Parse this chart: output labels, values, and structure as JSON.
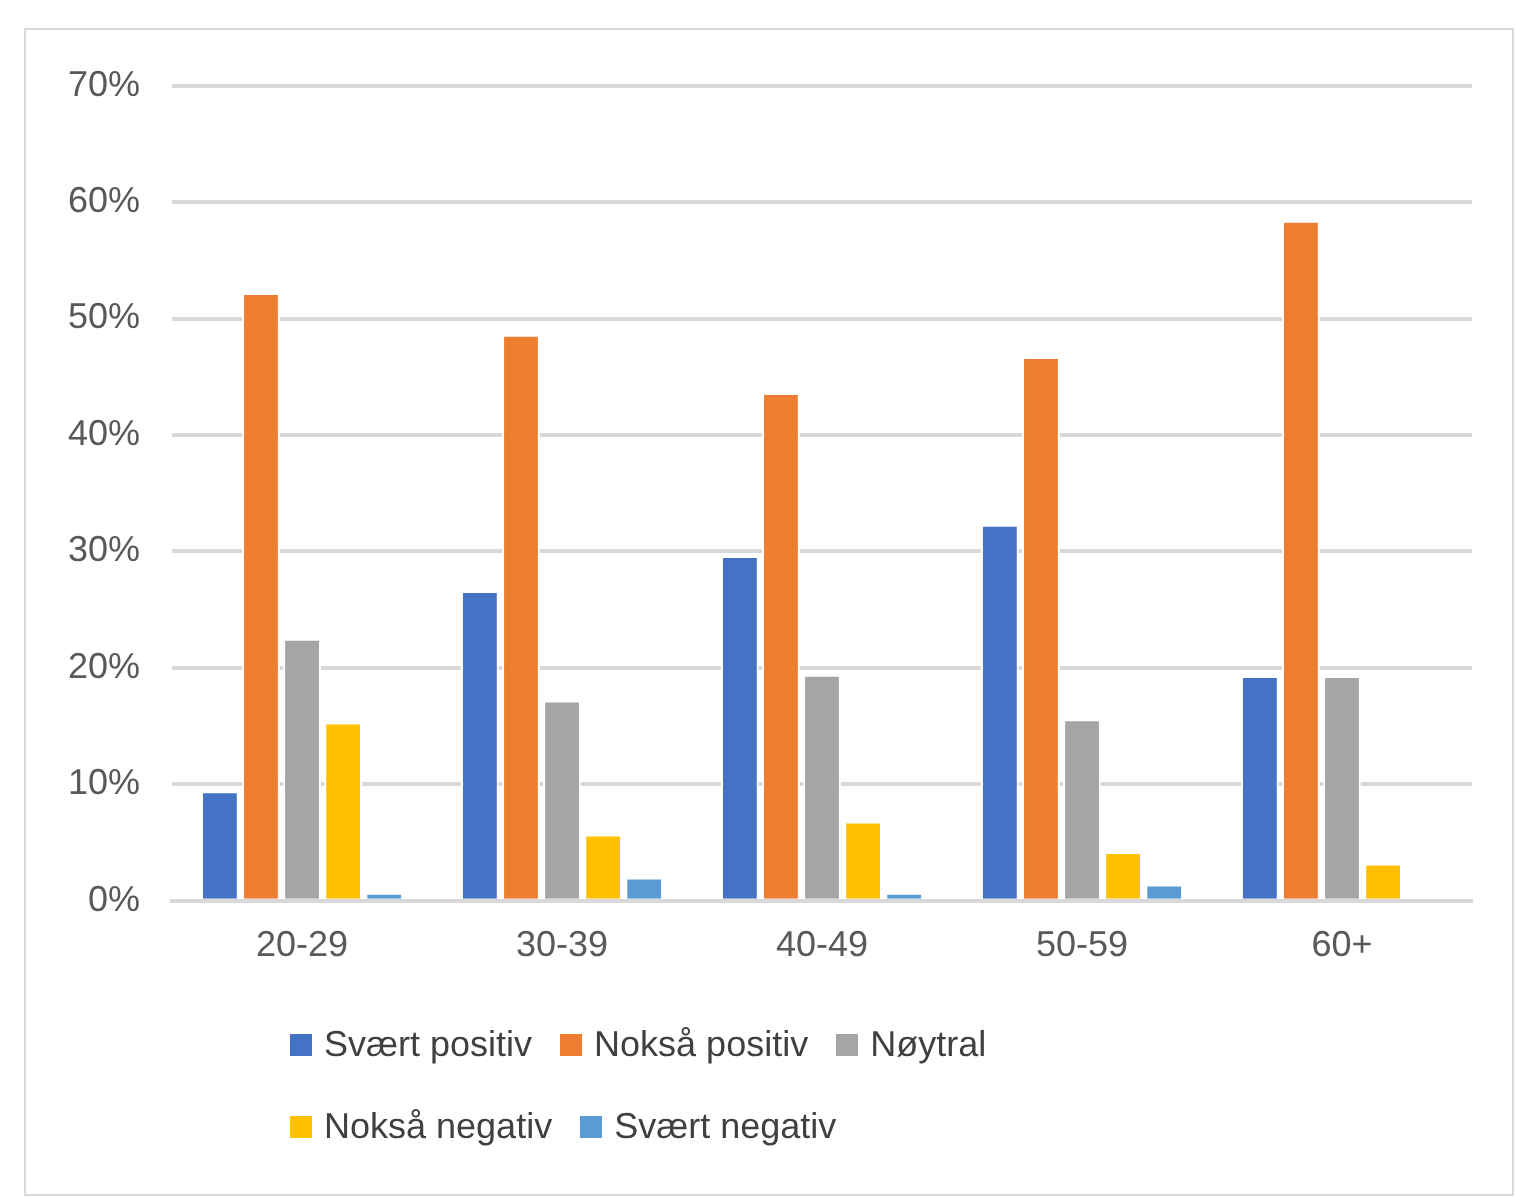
{
  "chart_data": {
    "type": "bar",
    "categories": [
      "20-29",
      "30-39",
      "40-49",
      "50-59",
      "60+"
    ],
    "series": [
      {
        "name": "Svært positiv",
        "color": "#4472c4",
        "values": [
          9.4,
          26.6,
          29.6,
          32.3,
          19.3
        ]
      },
      {
        "name": "Nokså positiv",
        "color": "#ed7d31",
        "values": [
          52.2,
          48.6,
          43.6,
          46.7,
          58.4
        ]
      },
      {
        "name": "Nøytral",
        "color": "#a5a5a5",
        "values": [
          22.5,
          17.2,
          19.4,
          15.6,
          19.3
        ]
      },
      {
        "name": "Nokså negativ",
        "color": "#ffc000",
        "values": [
          15.3,
          5.7,
          6.8,
          4.2,
          3.2
        ]
      },
      {
        "name": "Svært negativ",
        "color": "#5b9bd5",
        "values": [
          0.7,
          2.0,
          0.7,
          1.4,
          null
        ]
      }
    ],
    "ylim": [
      0,
      70
    ],
    "yticks": [
      {
        "value": 0,
        "label": "0%"
      },
      {
        "value": 10,
        "label": "10%"
      },
      {
        "value": 20,
        "label": "20%"
      },
      {
        "value": 30,
        "label": "30%"
      },
      {
        "value": 40,
        "label": "40%"
      },
      {
        "value": 50,
        "label": "50%"
      },
      {
        "value": 60,
        "label": "60%"
      },
      {
        "value": 70,
        "label": "70%"
      }
    ],
    "grid": "y",
    "legend": "bottom"
  }
}
